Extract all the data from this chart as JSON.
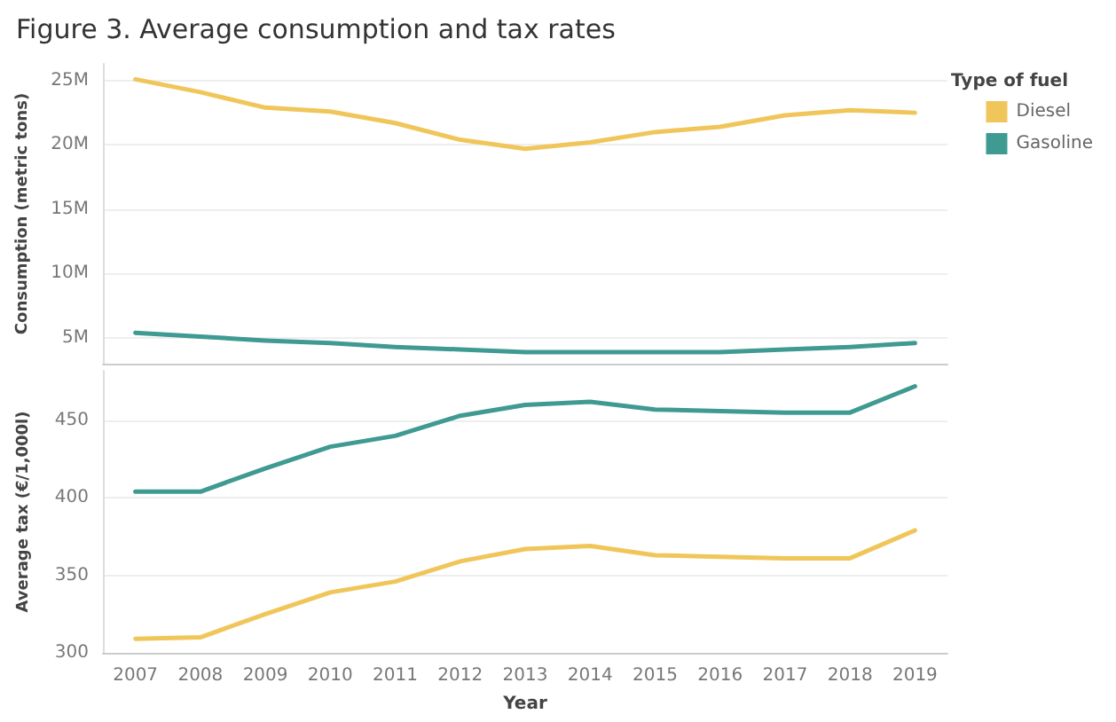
{
  "chart_data": [
    {
      "type": "line",
      "title": "Figure 3. Average consumption and tax rates",
      "ylabel": "Consumption (metric tons)",
      "legend_title": "Type of fuel",
      "legend": "top right",
      "grid": "y",
      "tick_labels": "y",
      "marker": "none",
      "line_style": "solid",
      "categories": [
        "2007",
        "2008",
        "2009",
        "2010",
        "2011",
        "2012",
        "2013",
        "2014",
        "2015",
        "2016",
        "2017",
        "2018",
        "2019"
      ],
      "ylim": [
        3000000,
        26300000
      ],
      "yticks": [
        {
          "value": 5000000,
          "label": "5M"
        },
        {
          "value": 10000000,
          "label": "10M"
        },
        {
          "value": 15000000,
          "label": "15M"
        },
        {
          "value": 20000000,
          "label": "20M"
        },
        {
          "value": 25000000,
          "label": "25M"
        }
      ],
      "series": [
        {
          "name": "Diesel",
          "color": "#f0c65a",
          "values": [
            25100000,
            24100000,
            22900000,
            22600000,
            21700000,
            20400000,
            19700000,
            20200000,
            21000000,
            21400000,
            22300000,
            22700000,
            22500000
          ]
        },
        {
          "name": "Gasoline",
          "color": "#3f9a92",
          "values": [
            5400000,
            5100000,
            4800000,
            4600000,
            4300000,
            4100000,
            3900000,
            3900000,
            3900000,
            3900000,
            4100000,
            4300000,
            4600000
          ]
        }
      ]
    },
    {
      "type": "line",
      "xlabel": "Year",
      "ylabel": "Average tax (€/1,000l)",
      "grid": "y",
      "marker": "none",
      "line_style": "solid",
      "categories": [
        "2007",
        "2008",
        "2009",
        "2010",
        "2011",
        "2012",
        "2013",
        "2014",
        "2015",
        "2016",
        "2017",
        "2018",
        "2019"
      ],
      "ylim": [
        300,
        482
      ],
      "yticks": [
        300,
        350,
        400,
        450
      ],
      "series": [
        {
          "color": "#f0c65a",
          "values": [
            309,
            310,
            325,
            339,
            346,
            359,
            367,
            369,
            363,
            362,
            361,
            361,
            379
          ]
        },
        {
          "color": "#3f9a92",
          "values": [
            404,
            404,
            419,
            433,
            440,
            453,
            460,
            462,
            457,
            456,
            455,
            455,
            472
          ]
        }
      ]
    }
  ]
}
